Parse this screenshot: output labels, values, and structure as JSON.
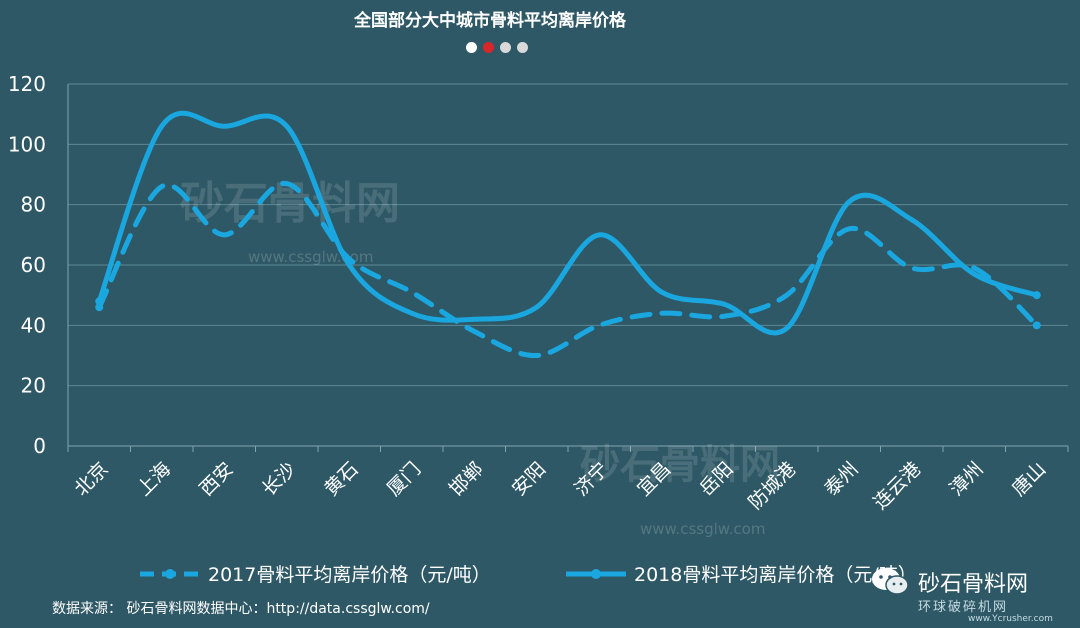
{
  "chart_data": {
    "type": "line",
    "title": "全国部分大中城市骨料平均离岸价格",
    "categories": [
      "北京",
      "上海",
      "西安",
      "长沙",
      "黄石",
      "厦门",
      "邯郸",
      "安阳",
      "济宁",
      "宜昌",
      "岳阳",
      "防城港",
      "泰州",
      "连云港",
      "漳州",
      "唐山"
    ],
    "ylim": [
      0,
      120
    ],
    "yticks": [
      "0",
      "20",
      "40",
      "60",
      "80",
      "100",
      "120"
    ],
    "grid": true,
    "legend_position": "bottom",
    "series": [
      {
        "name": "2017骨料平均离岸价格（元/吨）",
        "style": "dashed",
        "color": "#1aa7e0",
        "values": [
          46,
          86,
          70,
          87,
          62,
          51,
          38,
          30,
          40,
          44,
          43,
          50,
          72,
          59,
          59,
          40
        ]
      },
      {
        "name": "2018骨料平均离岸价格（元/吨）",
        "style": "solid",
        "color": "#1aa7e0",
        "values": [
          48,
          106,
          106,
          106,
          60,
          44,
          42,
          46,
          70,
          51,
          47,
          39,
          81,
          75,
          57,
          50
        ]
      }
    ]
  },
  "header": {
    "pager_dots": [
      "#ffffff",
      "#d7272b",
      "#d9d9d9",
      "#d9d9d9"
    ]
  },
  "watermarks": {
    "main": "砂石骨料网",
    "url": "www.cssglw.com"
  },
  "footer": {
    "source": "数据来源： 砂石骨料网数据中心：http://data.cssglw.com/"
  },
  "brand": {
    "name": "砂石骨料网",
    "sub": "环球破碎机网",
    "url": "www.Ycrusher.com",
    "icon": "wechat-icon"
  }
}
